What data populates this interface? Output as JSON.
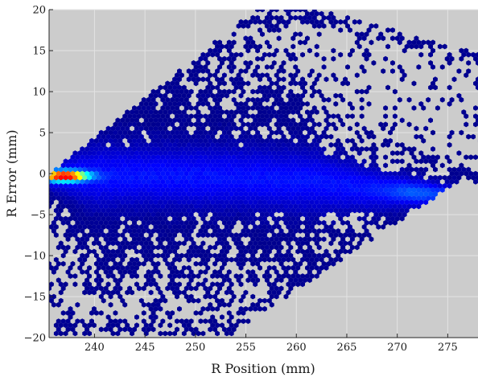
{
  "chart_data": {
    "type": "heatmap",
    "subtype": "hexbin",
    "title": "",
    "xlabel": "R Position (mm)",
    "ylabel": "R Error (mm)",
    "xlim": [
      235.5,
      278
    ],
    "ylim": [
      -20,
      20
    ],
    "xticks": [
      240,
      245,
      250,
      255,
      260,
      265,
      270,
      275
    ],
    "yticks": [
      -20,
      -15,
      -10,
      -5,
      0,
      5,
      10,
      15,
      20
    ],
    "grid": true,
    "colors": {
      "axes_background": "#cccccc",
      "grid": "#e3e3e3",
      "colormap": [
        "#00008f",
        "#0000ff",
        "#0080ff",
        "#00ffff",
        "#80ff80",
        "#ffff00",
        "#ff8000",
        "#ff0000"
      ]
    },
    "density_model": {
      "description": "2D histogram of R Error vs R Position; dense core along y~0 near x=236-244 (peak at x~237), broad band y in [-5,5] from x=240-262, narrowing band trending to y~-2.5 near x=272-276, sparse scatter within a parallelogram envelope",
      "peak": {
        "x": 237,
        "y": -0.3,
        "max_normalized": 1.0
      },
      "band_centers": [
        [
          236,
          -0.3
        ],
        [
          245,
          -0.3
        ],
        [
          255,
          -0.5
        ],
        [
          262,
          -1.0
        ],
        [
          268,
          -2.0
        ],
        [
          274,
          -2.5
        ]
      ],
      "envelope_lower": [
        [
          235.5,
          -20
        ],
        [
          253,
          -20
        ],
        [
          276,
          -1
        ]
      ],
      "envelope_upper": [
        [
          235.5,
          0
        ],
        [
          256,
          20
        ],
        [
          262,
          20
        ],
        [
          277.5,
          15
        ]
      ]
    }
  }
}
